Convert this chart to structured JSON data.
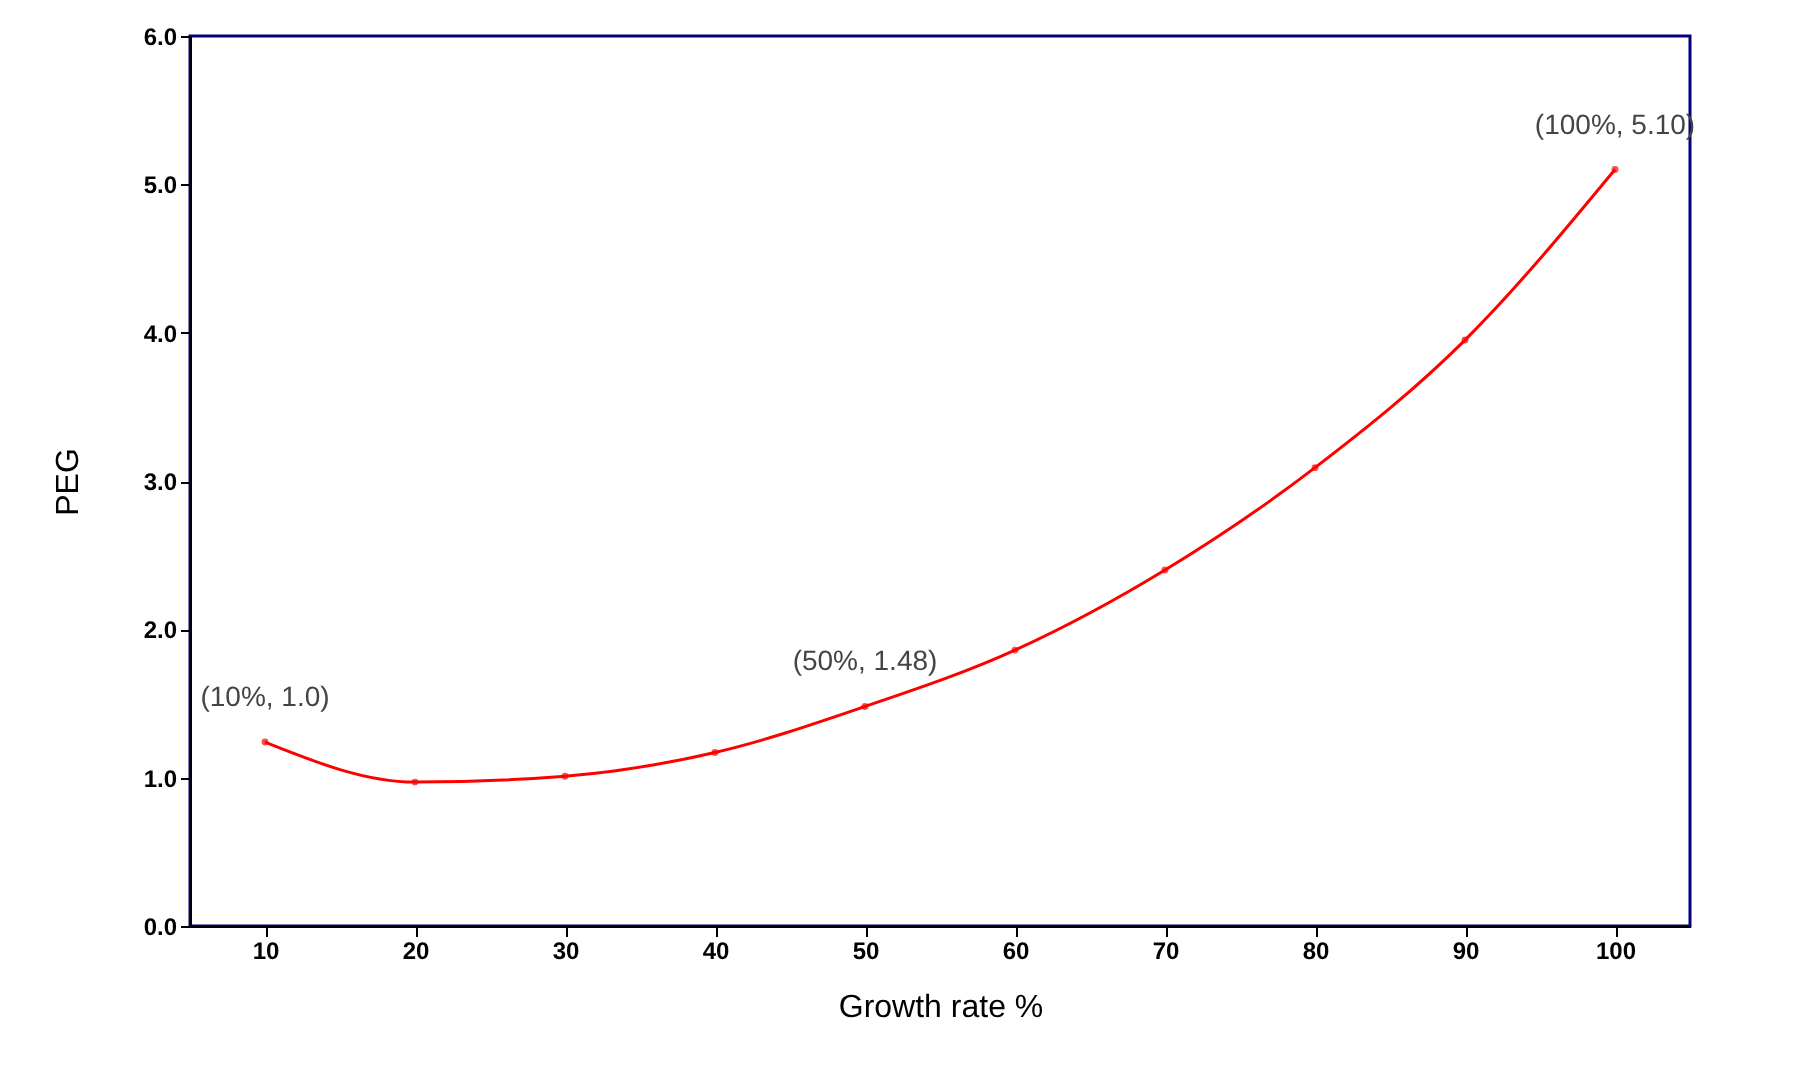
{
  "chart_data": {
    "type": "line",
    "xlabel": "Growth rate %",
    "ylabel": "PEG",
    "categories": [
      "10",
      "20",
      "30",
      "40",
      "50",
      "60",
      "70",
      "80",
      "90",
      "100"
    ],
    "series": [
      {
        "color": "#ff0000",
        "values": [
          1.24,
          0.97,
          1.01,
          1.17,
          1.48,
          1.86,
          2.4,
          3.09,
          3.95,
          5.1
        ]
      }
    ],
    "ylim": [
      0,
      6
    ],
    "yticks": [
      {
        "value": 0,
        "label": "0.0"
      },
      {
        "value": 1,
        "label": "1.0"
      },
      {
        "value": 2,
        "label": "2.0"
      },
      {
        "value": 3,
        "label": "3.0"
      },
      {
        "value": 4,
        "label": "4.0"
      },
      {
        "value": 5,
        "label": "5.0"
      },
      {
        "value": 6,
        "label": "6.0"
      }
    ],
    "annotations": [
      {
        "text": "(10%, 1.0)",
        "x": "10",
        "y": 1.24
      },
      {
        "text": "(50%, 1.48)",
        "x": "50",
        "y": 1.48
      },
      {
        "text": "(100%, 5.10)",
        "x": "100",
        "y": 5.1
      }
    ],
    "marker": "circle",
    "grid": false
  }
}
